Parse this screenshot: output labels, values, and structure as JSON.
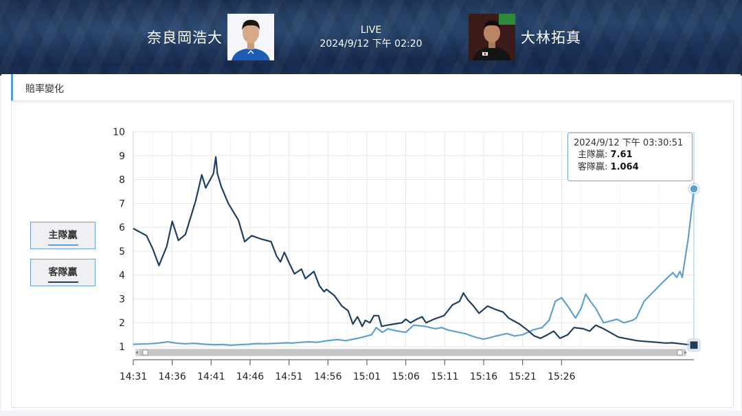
{
  "header": {
    "home_team": "奈良岡浩大",
    "away_team": "大林拓真",
    "status": "LIVE",
    "datetime": "2024/9/12 下午 02:20"
  },
  "panel": {
    "title": "賠率變化"
  },
  "legend": [
    {
      "label": "主隊贏",
      "color": "#5ba0cf"
    },
    {
      "label": "客隊贏",
      "color": "#1d3f5e"
    }
  ],
  "tooltip": {
    "time": "2024/9/12 下午 03:30:51",
    "home_label": "主隊贏:",
    "home_value": "7.61",
    "away_label": "客隊贏:",
    "away_value": "1.064"
  },
  "chart_data": {
    "type": "line",
    "y_ticks": [
      1,
      2,
      3,
      4,
      5,
      6,
      7,
      8,
      9,
      10
    ],
    "ylim": [
      1,
      10
    ],
    "x_range_min": [
      0,
      59.8
    ],
    "x_tick_labels": [
      "14:31",
      "14:36",
      "14:41",
      "14:46",
      "14:51",
      "14:56",
      "15:01",
      "15:06",
      "15:11",
      "15:16",
      "15:21",
      "15:26"
    ],
    "x_tick_minutes": [
      0,
      5,
      10,
      15,
      20,
      25,
      30,
      35,
      40,
      45,
      50,
      55
    ],
    "grid": true,
    "series": [
      {
        "name": "主隊贏",
        "color": "#5ba0cf",
        "points": [
          [
            0,
            1.1
          ],
          [
            2,
            1.12
          ],
          [
            3.2,
            1.15
          ],
          [
            4.4,
            1.2
          ],
          [
            5.5,
            1.15
          ],
          [
            6.7,
            1.12
          ],
          [
            7.8,
            1.14
          ],
          [
            9.2,
            1.1
          ],
          [
            10.6,
            1.08
          ],
          [
            11.5,
            1.09
          ],
          [
            12.5,
            1.06
          ],
          [
            13.5,
            1.08
          ],
          [
            14.8,
            1.1
          ],
          [
            15.9,
            1.13
          ],
          [
            16.8,
            1.12
          ],
          [
            18.5,
            1.14
          ],
          [
            19.6,
            1.16
          ],
          [
            20.4,
            1.15
          ],
          [
            21.5,
            1.18
          ],
          [
            22.6,
            1.2
          ],
          [
            23.6,
            1.18
          ],
          [
            24.9,
            1.25
          ],
          [
            26.2,
            1.3
          ],
          [
            27.3,
            1.25
          ],
          [
            28.5,
            1.33
          ],
          [
            29.5,
            1.4
          ],
          [
            30.6,
            1.5
          ],
          [
            31.2,
            1.8
          ],
          [
            32,
            1.6
          ],
          [
            32.7,
            1.75
          ],
          [
            33.3,
            1.7
          ],
          [
            34,
            1.65
          ],
          [
            35,
            1.6
          ],
          [
            36,
            1.9
          ],
          [
            37.5,
            1.85
          ],
          [
            38.8,
            1.75
          ],
          [
            39.6,
            1.8
          ],
          [
            40.4,
            1.7
          ],
          [
            41.8,
            1.6
          ],
          [
            42.6,
            1.55
          ],
          [
            43.9,
            1.4
          ],
          [
            44.9,
            1.32
          ],
          [
            45.5,
            1.35
          ],
          [
            46.6,
            1.45
          ],
          [
            48,
            1.55
          ],
          [
            49,
            1.45
          ],
          [
            50,
            1.5
          ],
          [
            51.3,
            1.7
          ],
          [
            52.5,
            1.8
          ],
          [
            53.4,
            2.1
          ],
          [
            54.2,
            2.9
          ],
          [
            55,
            3.05
          ],
          [
            55.8,
            2.7
          ],
          [
            56.8,
            2.2
          ],
          [
            57.5,
            2.6
          ],
          [
            58.1,
            3.2
          ],
          [
            58.7,
            2.9
          ],
          [
            59.4,
            2.6
          ],
          [
            60.4,
            2.0
          ],
          [
            61.6,
            2.1
          ],
          [
            62.1,
            2.15
          ],
          [
            63,
            2.0
          ],
          [
            64.1,
            2.1
          ],
          [
            64.6,
            2.2
          ],
          [
            65.6,
            2.9
          ],
          [
            66.8,
            3.3
          ],
          [
            68,
            3.7
          ],
          [
            69.3,
            4.1
          ],
          [
            69.8,
            3.9
          ],
          [
            70.2,
            4.15
          ],
          [
            70.5,
            3.9
          ],
          [
            71.3,
            5.6
          ],
          [
            72,
            7.61
          ]
        ]
      },
      {
        "name": "客隊贏",
        "color": "#1d3f5e",
        "points": [
          [
            0,
            5.95
          ],
          [
            1.7,
            5.65
          ],
          [
            2.5,
            5.1
          ],
          [
            3.3,
            4.4
          ],
          [
            4.3,
            5.2
          ],
          [
            5,
            6.25
          ],
          [
            5.8,
            5.45
          ],
          [
            6.7,
            5.7
          ],
          [
            8,
            7.1
          ],
          [
            8.8,
            8.2
          ],
          [
            9.3,
            7.65
          ],
          [
            10.3,
            8.25
          ],
          [
            10.6,
            8.95
          ],
          [
            10.8,
            8.25
          ],
          [
            11.3,
            7.7
          ],
          [
            12.2,
            7.0
          ],
          [
            13.5,
            6.3
          ],
          [
            14.3,
            5.4
          ],
          [
            15.2,
            5.65
          ],
          [
            16.5,
            5.5
          ],
          [
            17.7,
            5.4
          ],
          [
            18.4,
            4.8
          ],
          [
            18.9,
            4.55
          ],
          [
            19.4,
            4.95
          ],
          [
            20.1,
            4.45
          ],
          [
            20.7,
            4.05
          ],
          [
            21.6,
            4.25
          ],
          [
            22.1,
            3.85
          ],
          [
            23.2,
            4.15
          ],
          [
            23.9,
            3.55
          ],
          [
            24.5,
            3.3
          ],
          [
            24.8,
            3.4
          ],
          [
            25.8,
            3.15
          ],
          [
            26.8,
            2.7
          ],
          [
            27.6,
            2.5
          ],
          [
            28.2,
            1.95
          ],
          [
            28.8,
            2.25
          ],
          [
            29.4,
            1.85
          ],
          [
            29.8,
            2.1
          ],
          [
            30.4,
            2.0
          ],
          [
            30.9,
            2.3
          ],
          [
            31.5,
            2.3
          ],
          [
            31.9,
            1.85
          ],
          [
            32.6,
            1.9
          ],
          [
            33.5,
            1.95
          ],
          [
            34.5,
            2.0
          ],
          [
            35,
            2.15
          ],
          [
            35.6,
            2.0
          ],
          [
            36.4,
            2.15
          ],
          [
            37.1,
            2.25
          ],
          [
            37.6,
            2.0
          ],
          [
            38.6,
            2.15
          ],
          [
            39.9,
            2.3
          ],
          [
            41,
            2.75
          ],
          [
            41.9,
            2.9
          ],
          [
            42.4,
            3.25
          ],
          [
            43,
            2.95
          ],
          [
            43.7,
            2.7
          ],
          [
            44.4,
            2.4
          ],
          [
            45.5,
            2.7
          ],
          [
            46.6,
            2.55
          ],
          [
            47.5,
            2.45
          ],
          [
            48.2,
            2.2
          ],
          [
            49.6,
            1.95
          ],
          [
            50.6,
            1.7
          ],
          [
            51.5,
            1.45
          ],
          [
            52.3,
            1.35
          ],
          [
            53.2,
            1.5
          ],
          [
            54,
            1.65
          ],
          [
            54.8,
            1.35
          ],
          [
            55.8,
            1.5
          ],
          [
            56.6,
            1.8
          ],
          [
            57.8,
            1.75
          ],
          [
            58.6,
            1.65
          ],
          [
            59.4,
            1.9
          ],
          [
            60.4,
            1.75
          ],
          [
            61.5,
            1.55
          ],
          [
            62.3,
            1.4
          ],
          [
            63.6,
            1.32
          ],
          [
            64.7,
            1.25
          ],
          [
            65.7,
            1.22
          ],
          [
            66.5,
            1.2
          ],
          [
            67.3,
            1.18
          ],
          [
            68.4,
            1.15
          ],
          [
            69.2,
            1.16
          ],
          [
            70.6,
            1.11
          ],
          [
            72,
            1.064
          ]
        ]
      }
    ]
  }
}
